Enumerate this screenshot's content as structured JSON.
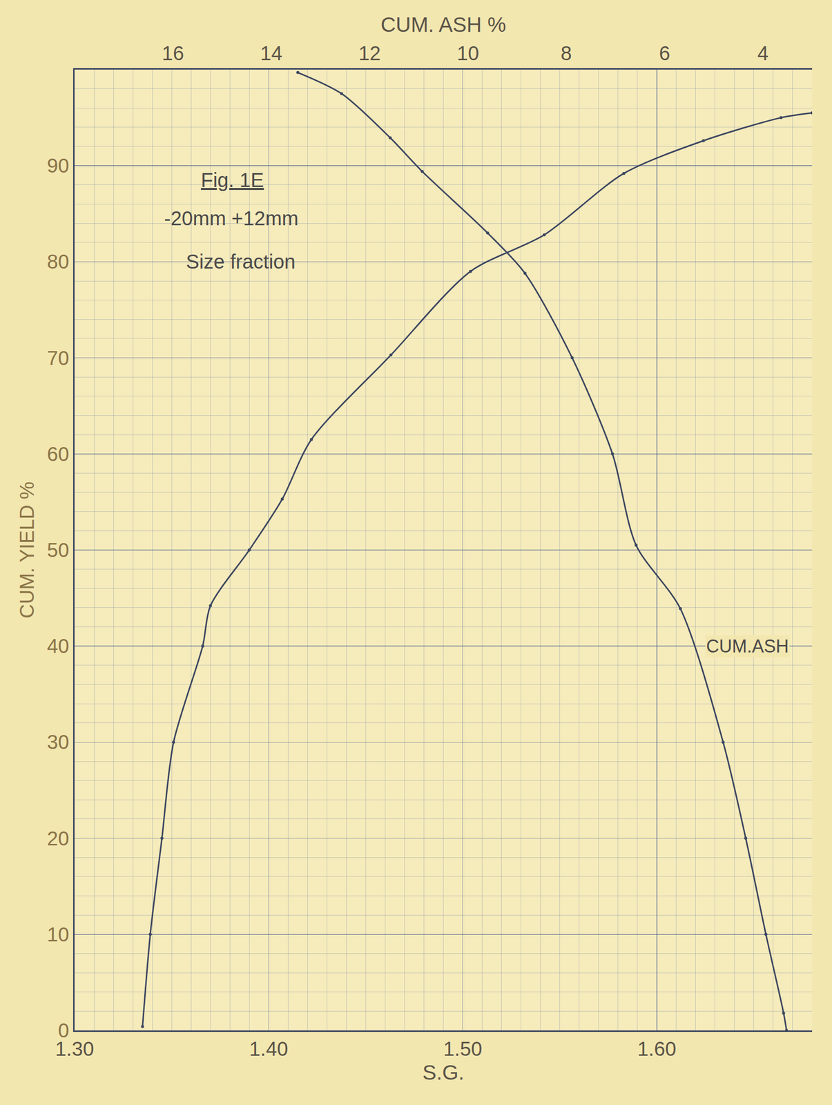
{
  "chart_data": {
    "type": "line",
    "x_label": "S.G.",
    "y_label": "CUM. YIELD %",
    "x2_label": "CUM. ASH %",
    "xlim": [
      1.3,
      1.68
    ],
    "xticks": [
      {
        "value": 1.3,
        "label": "1.30"
      },
      {
        "value": 1.4,
        "label": "1.40"
      },
      {
        "value": 1.5,
        "label": "1.50"
      },
      {
        "value": 1.6,
        "label": "1.60"
      }
    ],
    "x2lim": [
      18,
      3
    ],
    "x2ticks": [
      16,
      14,
      12,
      10,
      8,
      6,
      4
    ],
    "ylim": [
      0,
      100
    ],
    "yticks": [
      0,
      10,
      20,
      30,
      40,
      50,
      60,
      70,
      80,
      90
    ],
    "grid": true,
    "annotations": [
      "Fig. 1E",
      "-20mm +12mm",
      "Size fraction",
      "CUM.ASH"
    ],
    "series": [
      {
        "name": "CUM. YIELD",
        "color": "#3c4660",
        "marker": "dot",
        "line_style": "solid",
        "x": [
          1.335,
          1.339,
          1.345,
          1.351,
          1.366,
          1.37,
          1.39,
          1.407,
          1.422,
          1.463,
          1.504,
          1.542,
          1.583,
          1.624,
          1.664,
          1.68
        ],
        "values": [
          0.4,
          10,
          20,
          30,
          40,
          44.2,
          50,
          55.3,
          61.5,
          70.3,
          79,
          82.8,
          89.2,
          92.6,
          95,
          95.5
        ]
      },
      {
        "name": "CUM.ASH",
        "axis": "x2",
        "color": "#3c4660",
        "marker": "dot",
        "line_style": "solid",
        "x": [
          13.46,
          12.57,
          11.58,
          10.93,
          9.6,
          8.84,
          7.88,
          7.06,
          6.58,
          5.68,
          4.81,
          4.35,
          3.94,
          3.58,
          3.52
        ],
        "values": [
          99.7,
          97.5,
          92.9,
          89.4,
          83.0,
          78.8,
          70.0,
          60,
          50.5,
          43.9,
          30,
          20,
          10,
          1.8,
          0
        ]
      }
    ]
  }
}
